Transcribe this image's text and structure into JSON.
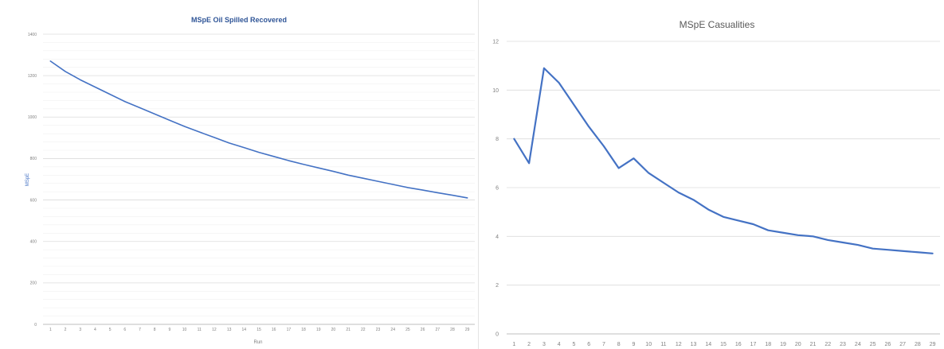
{
  "chart_data": [
    {
      "type": "line",
      "title": "MSpE Oil Spilled Recovered",
      "xlabel": "Run",
      "ylabel": "MSpE",
      "ylim": [
        0,
        1400
      ],
      "yticks": [
        0,
        200,
        400,
        600,
        800,
        1000,
        1200,
        1400
      ],
      "grid": true,
      "legend": "none",
      "line_color": "#4472c4",
      "x": [
        1,
        2,
        3,
        4,
        5,
        6,
        7,
        8,
        9,
        10,
        11,
        12,
        13,
        14,
        15,
        16,
        17,
        18,
        19,
        20,
        21,
        22,
        23,
        24,
        25,
        26,
        27,
        28,
        29
      ],
      "series": [
        {
          "values": [
            1270,
            1220,
            1180,
            1145,
            1110,
            1075,
            1045,
            1015,
            985,
            955,
            928,
            902,
            875,
            853,
            830,
            810,
            790,
            772,
            755,
            738,
            720,
            705,
            690,
            675,
            660,
            648,
            635,
            623,
            610
          ]
        }
      ]
    },
    {
      "type": "line",
      "title": "MSpE Casualities",
      "xlabel": "",
      "ylabel": "",
      "ylim": [
        0,
        12
      ],
      "yticks": [
        0,
        2,
        4,
        6,
        8,
        10,
        12
      ],
      "grid": true,
      "legend": "none",
      "line_color": "#4472c4",
      "x": [
        1,
        2,
        3,
        4,
        5,
        6,
        7,
        8,
        9,
        10,
        11,
        12,
        13,
        14,
        15,
        16,
        17,
        18,
        19,
        20,
        21,
        22,
        23,
        24,
        25,
        26,
        27,
        28,
        29
      ],
      "series": [
        {
          "values": [
            8.0,
            7.0,
            10.9,
            10.3,
            9.4,
            8.5,
            7.7,
            6.8,
            7.2,
            6.6,
            6.2,
            5.8,
            5.5,
            5.1,
            4.8,
            4.65,
            4.5,
            4.25,
            4.15,
            4.05,
            4.0,
            3.85,
            3.75,
            3.65,
            3.5,
            3.45,
            3.4,
            3.35,
            3.3
          ]
        }
      ]
    }
  ]
}
